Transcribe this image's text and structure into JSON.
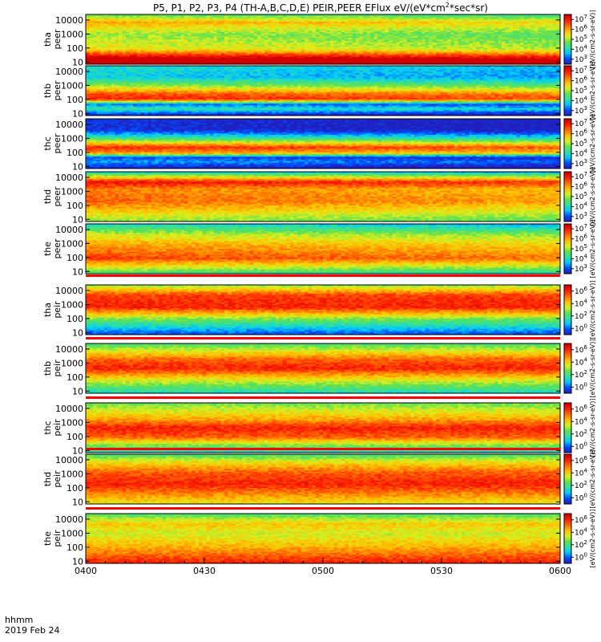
{
  "title": "P5, P1, P2, P3, P4 (TH-A,B,C,D,E) PEIR,PEER EFlux eV/(eV*cm",
  "title_sup": "2",
  "title_tail": "*sec*sr)",
  "footer": {
    "label_line1": "hhmm",
    "label_line2": "2019 Feb 24"
  },
  "chart_data": {
    "type": "heatmap",
    "x_axis": {
      "ticks": [
        "0400",
        "0430",
        "0500",
        "0530",
        "0600"
      ],
      "range": [
        "0400",
        "0600"
      ],
      "minor_ticks_per_major": 6
    },
    "y_axis": {
      "scale": "log",
      "range": [
        7,
        25000
      ],
      "ticks": [
        "10",
        "100",
        "1000",
        "10000"
      ],
      "unit": "eV"
    },
    "colorbar": {
      "scale": "log",
      "label": "[eV/(cm2-s-sr-eV)]",
      "colors": [
        "#ffffff",
        "#2020c0",
        "#0050ff",
        "#00c8ff",
        "#30e0a0",
        "#60e050",
        "#d8f020",
        "#ffc000",
        "#ff7000",
        "#ff2000",
        "#d00000"
      ],
      "peer_ticks": [
        {
          "base": "10",
          "exp": "3"
        },
        {
          "base": "10",
          "exp": "4"
        },
        {
          "base": "10",
          "exp": "5"
        },
        {
          "base": "10",
          "exp": "6"
        },
        {
          "base": "10",
          "exp": "7"
        }
      ],
      "peir_ticks": [
        {
          "base": "10",
          "exp": "0"
        },
        {
          "base": "10",
          "exp": "2"
        },
        {
          "base": "10",
          "exp": "4"
        },
        {
          "base": "10",
          "exp": "6"
        }
      ]
    },
    "panels": [
      {
        "label_top": "tha",
        "label_bottom": "peer",
        "probe": "P5",
        "species": "electron",
        "profile": [
          [
            0,
            1.3
          ],
          [
            0.3,
            0.6
          ],
          [
            0.6,
            0.5
          ],
          [
            0.85,
            0.7
          ],
          [
            1,
            0.45
          ]
        ]
      },
      {
        "label_top": "thb",
        "label_bottom": "peer",
        "probe": "P1",
        "species": "electron",
        "profile": [
          [
            0,
            0.05
          ],
          [
            0.12,
            0.35
          ],
          [
            0.22,
            0.15
          ],
          [
            0.32,
            0.9
          ],
          [
            0.42,
            0.85
          ],
          [
            0.6,
            0.5
          ],
          [
            0.78,
            0.25
          ],
          [
            1,
            0.3
          ]
        ]
      },
      {
        "label_top": "thc",
        "label_bottom": "peer",
        "probe": "P2",
        "species": "electron",
        "profile": [
          [
            0,
            0.02
          ],
          [
            0.12,
            0.2
          ],
          [
            0.22,
            0.1
          ],
          [
            0.3,
            0.7
          ],
          [
            0.42,
            0.9
          ],
          [
            0.6,
            0.4
          ],
          [
            0.78,
            0.05
          ],
          [
            1,
            0.05
          ]
        ]
      },
      {
        "label_top": "thd",
        "label_bottom": "peer",
        "probe": "P3",
        "species": "electron",
        "profile": [
          [
            0,
            0.5
          ],
          [
            0.4,
            0.8
          ],
          [
            0.65,
            0.75
          ],
          [
            0.8,
            0.95
          ],
          [
            1,
            0.3
          ]
        ]
      },
      {
        "label_top": "the",
        "label_bottom": "peer",
        "probe": "P4",
        "species": "electron",
        "profile": [
          [
            0,
            0.4
          ],
          [
            0.3,
            0.85
          ],
          [
            0.6,
            0.7
          ],
          [
            0.8,
            0.55
          ],
          [
            1,
            0.3
          ]
        ]
      },
      {
        "label_top": "tha",
        "label_bottom": "peir",
        "probe": "P5",
        "species": "ion",
        "profile": [
          [
            0,
            0.1
          ],
          [
            0.3,
            0.45
          ],
          [
            0.55,
            0.9
          ],
          [
            0.8,
            0.85
          ],
          [
            1,
            0.5
          ]
        ]
      },
      {
        "label_top": "thb",
        "label_bottom": "peir",
        "probe": "P1",
        "species": "ion",
        "profile": [
          [
            0,
            0.3
          ],
          [
            0.15,
            0.45
          ],
          [
            0.28,
            0.6
          ],
          [
            0.5,
            0.9
          ],
          [
            0.68,
            0.8
          ],
          [
            1,
            0.4
          ]
        ]
      },
      {
        "label_top": "thc",
        "label_bottom": "peir",
        "probe": "P2",
        "species": "ion",
        "profile": [
          [
            0,
            0.3
          ],
          [
            0.15,
            0.5
          ],
          [
            0.3,
            0.8
          ],
          [
            0.5,
            0.9
          ],
          [
            0.68,
            0.7
          ],
          [
            1,
            0.45
          ]
        ]
      },
      {
        "label_top": "thd",
        "label_bottom": "peir",
        "probe": "P3",
        "species": "ion",
        "profile": [
          [
            0,
            0.6
          ],
          [
            0.4,
            0.9
          ],
          [
            0.65,
            0.8
          ],
          [
            0.85,
            0.6
          ],
          [
            1,
            0.4
          ]
        ]
      },
      {
        "label_top": "the",
        "label_bottom": "peir",
        "probe": "P4",
        "species": "ion",
        "profile": [
          [
            0,
            0.9
          ],
          [
            0.3,
            0.7
          ],
          [
            0.6,
            0.55
          ],
          [
            0.8,
            0.65
          ],
          [
            1,
            0.4
          ]
        ]
      }
    ]
  }
}
